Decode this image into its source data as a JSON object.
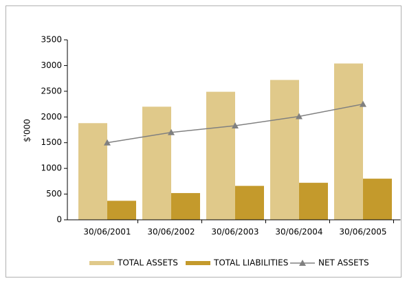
{
  "chart_data": {
    "type": "bar-line",
    "y_label": "$'000",
    "categories": [
      "30/06/2001",
      "30/06/2002",
      "30/06/2003",
      "30/06/2004",
      "30/06/2005"
    ],
    "series": [
      {
        "name": "TOTAL ASSETS",
        "type": "bar",
        "color": "#e0c98a",
        "values": [
          1880,
          2200,
          2490,
          2720,
          3040
        ]
      },
      {
        "name": "TOTAL LIABILITIES",
        "type": "bar",
        "color": "#c49a2c",
        "values": [
          370,
          520,
          660,
          720,
          800
        ]
      },
      {
        "name": "NET ASSETS",
        "type": "line",
        "color": "#808080",
        "values": [
          1500,
          1700,
          1830,
          2010,
          2250
        ]
      }
    ],
    "ylim": [
      0,
      3500
    ],
    "yticks": [
      0,
      500,
      1000,
      1500,
      2000,
      2500,
      3000,
      3500
    ],
    "legend": "bottom"
  }
}
